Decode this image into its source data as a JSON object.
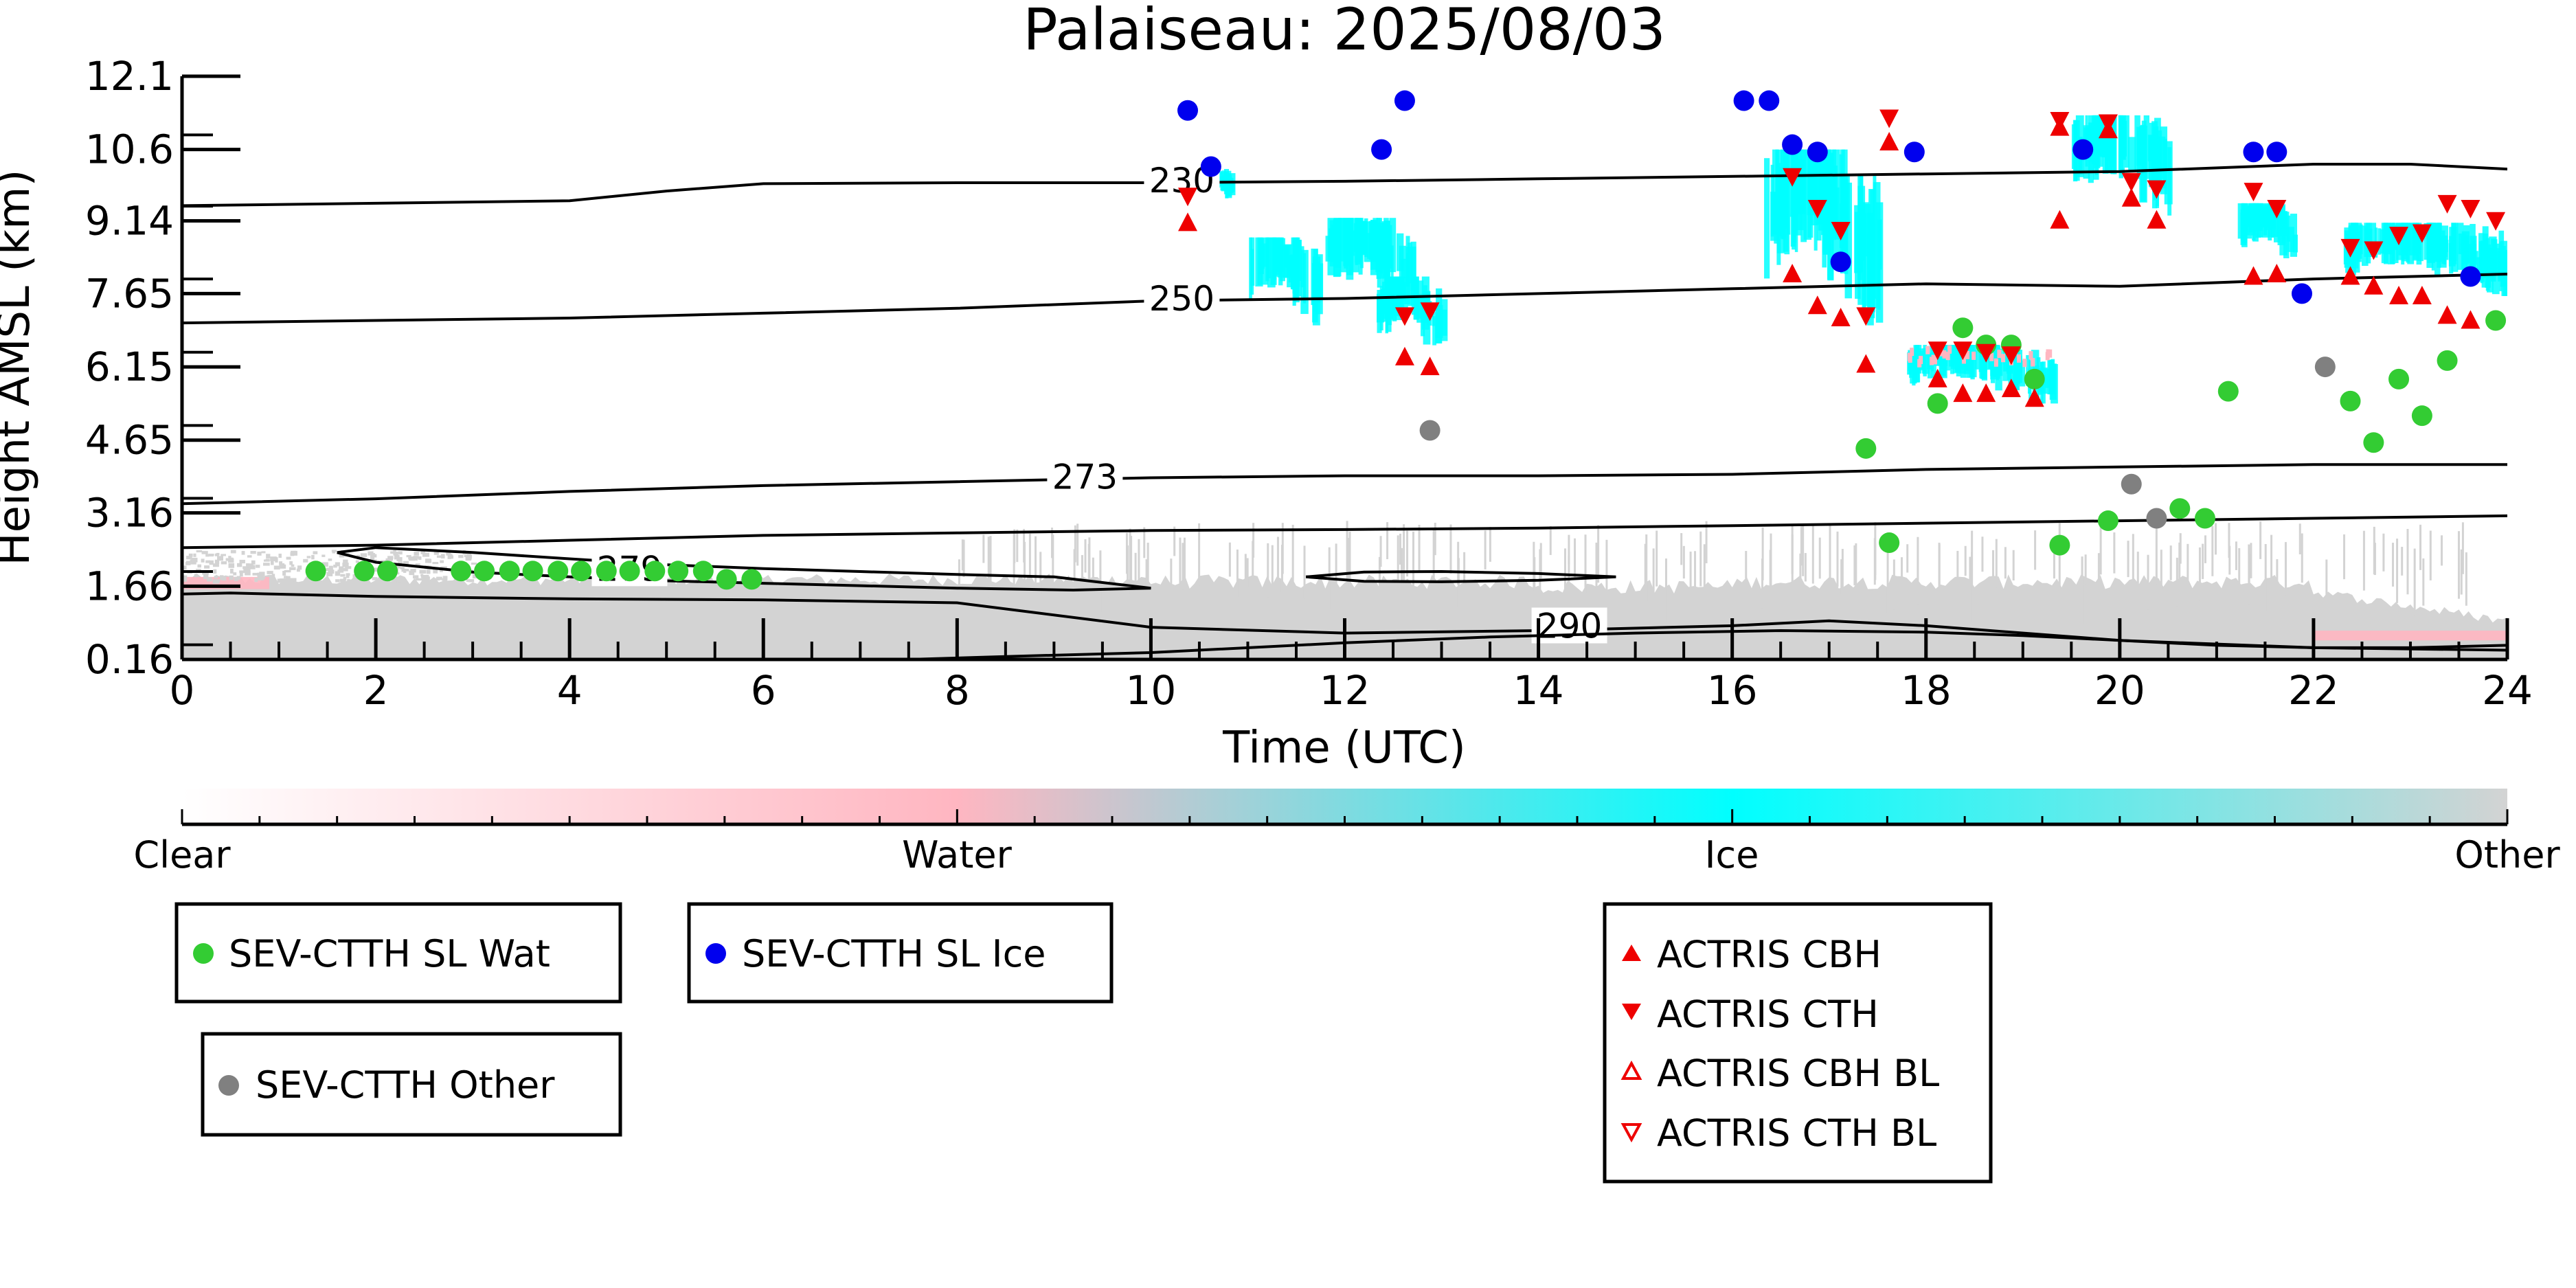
{
  "chart_data": {
    "type": "scatter",
    "title": "Palaiseau: 2025/08/03",
    "xlabel": "Time (UTC)",
    "ylabel": "Height AMSL (km)",
    "xlim": [
      0,
      24
    ],
    "ylim": [
      0.16,
      12.1
    ],
    "xticks": [
      "0",
      "2",
      "4",
      "6",
      "8",
      "10",
      "12",
      "14",
      "16",
      "18",
      "20",
      "22",
      "24"
    ],
    "yticks": [
      "0.16",
      "1.66",
      "3.16",
      "4.65",
      "6.15",
      "7.65",
      "9.14",
      "10.6",
      "12.1"
    ],
    "colorbar": {
      "labels": [
        "Clear",
        "Water",
        "Ice",
        "Other"
      ],
      "colors": [
        "#ffffff",
        "#ffb6c1",
        "#00ffff",
        "#d3d3d3"
      ]
    },
    "cloud_regions": [
      {
        "cls": "ice",
        "t0": 10.1,
        "t1": 10.8,
        "h0": 9.6,
        "h1": 10.3
      },
      {
        "cls": "ice",
        "t0": 11.0,
        "t1": 11.7,
        "h0": 7.0,
        "h1": 8.8
      },
      {
        "cls": "ice",
        "t0": 11.8,
        "t1": 12.7,
        "h0": 7.2,
        "h1": 9.2
      },
      {
        "cls": "ice",
        "t0": 12.3,
        "t1": 13.0,
        "h0": 6.3,
        "h1": 8.0
      },
      {
        "cls": "ice",
        "t0": 16.3,
        "t1": 17.5,
        "h0": 7.0,
        "h1": 10.6
      },
      {
        "cls": "ice",
        "t0": 17.8,
        "t1": 19.3,
        "h0": 5.4,
        "h1": 6.6
      },
      {
        "cls": "ice",
        "t0": 19.5,
        "t1": 20.5,
        "h0": 9.2,
        "h1": 11.3
      },
      {
        "cls": "ice",
        "t0": 21.2,
        "t1": 21.8,
        "h0": 8.2,
        "h1": 9.5
      },
      {
        "cls": "ice",
        "t0": 22.3,
        "t1": 24.0,
        "h0": 7.6,
        "h1": 9.1
      }
    ],
    "boundary_layer": [
      {
        "cls": "other",
        "t0": 0.0,
        "t1": 24.0,
        "h0": 0.16,
        "h1": 1.8
      },
      {
        "cls": "water",
        "t0": 0.0,
        "t1": 0.9,
        "h0": 1.6,
        "h1": 1.85
      },
      {
        "cls": "water",
        "t0": 22.0,
        "t1": 24.0,
        "h0": 0.55,
        "h1": 0.75
      },
      {
        "cls": "other",
        "t0": 0.0,
        "t1": 3.0,
        "h0": 1.8,
        "h1": 2.9
      }
    ],
    "contours": [
      {
        "label": "230",
        "label_x": 10.0,
        "label_y": 9.92,
        "x": [
          0,
          2,
          4,
          5,
          6,
          8,
          10,
          12,
          14,
          16,
          18,
          20,
          22,
          23,
          24
        ],
        "y": [
          9.45,
          9.5,
          9.55,
          9.75,
          9.9,
          9.92,
          9.92,
          9.95,
          10.0,
          10.05,
          10.1,
          10.15,
          10.3,
          10.3,
          10.2
        ]
      },
      {
        "label": "250",
        "label_x": 10.0,
        "label_y": 7.5,
        "x": [
          0,
          2,
          4,
          6,
          8,
          10,
          12,
          14,
          16,
          18,
          20,
          22,
          24
        ],
        "y": [
          7.05,
          7.1,
          7.15,
          7.25,
          7.35,
          7.5,
          7.55,
          7.65,
          7.75,
          7.85,
          7.8,
          7.95,
          8.05
        ]
      },
      {
        "label": "273",
        "label_x": 9.0,
        "label_y": 3.85,
        "x": [
          0,
          2,
          4,
          6,
          8,
          10,
          12,
          14,
          16,
          18,
          20,
          22,
          24
        ],
        "y": [
          3.35,
          3.45,
          3.6,
          3.72,
          3.8,
          3.88,
          3.92,
          3.92,
          3.95,
          4.05,
          4.1,
          4.15,
          4.15
        ]
      },
      {
        "label": "",
        "label_x": 0,
        "label_y": 0,
        "x": [
          0,
          2,
          4,
          6,
          8,
          10,
          12,
          14,
          16,
          18,
          20,
          22,
          24
        ],
        "y": [
          2.45,
          2.5,
          2.6,
          2.7,
          2.75,
          2.8,
          2.82,
          2.85,
          2.9,
          2.95,
          3.0,
          3.05,
          3.1
        ]
      },
      {
        "label": "279",
        "label_x": 4.3,
        "label_y": 1.97,
        "x": [
          1.6,
          2.0,
          3.0,
          4.0,
          5.0,
          6.0,
          7.0,
          8.0,
          9.0,
          10.0,
          9.2,
          8.0,
          7.0,
          6.0,
          5.0,
          4.0,
          3.0,
          2.0,
          1.6
        ],
        "y": [
          2.35,
          2.45,
          2.35,
          2.22,
          2.1,
          2.02,
          1.96,
          1.9,
          1.85,
          1.62,
          1.58,
          1.62,
          1.67,
          1.72,
          1.77,
          1.85,
          1.95,
          2.15,
          2.35
        ]
      },
      {
        "label": "",
        "label_x": 0,
        "label_y": 0,
        "x": [
          11.6,
          12.2,
          13.0,
          14.0,
          14.8,
          14.0,
          13.0,
          12.2,
          11.6
        ],
        "y": [
          1.85,
          1.95,
          1.96,
          1.92,
          1.85,
          1.78,
          1.75,
          1.76,
          1.85
        ]
      },
      {
        "label": "290",
        "label_x": 14.0,
        "label_y": 0.8,
        "x": [
          0,
          0.5,
          2,
          4,
          6,
          8,
          10,
          12,
          14,
          16,
          17,
          18,
          20,
          22,
          24
        ],
        "y": [
          1.5,
          1.52,
          1.45,
          1.4,
          1.38,
          1.32,
          0.82,
          0.7,
          0.75,
          0.85,
          0.95,
          0.85,
          0.55,
          0.4,
          0.35
        ]
      },
      {
        "label": "",
        "label_x": 0,
        "label_y": 0,
        "x": [
          7.5,
          8.5,
          10,
          12,
          13.5,
          15,
          16.5,
          18,
          19,
          20,
          21,
          22,
          23,
          24
        ],
        "y": [
          0.16,
          0.22,
          0.3,
          0.5,
          0.62,
          0.7,
          0.75,
          0.72,
          0.65,
          0.55,
          0.45,
          0.4,
          0.4,
          0.45
        ]
      }
    ],
    "series": [
      {
        "name": "SEV-CTTH SL Wat",
        "color": "#33cc33",
        "marker": "circle",
        "points": [
          [
            1.38,
            1.97
          ],
          [
            1.88,
            1.97
          ],
          [
            2.12,
            1.97
          ],
          [
            2.88,
            1.97
          ],
          [
            3.12,
            1.97
          ],
          [
            3.38,
            1.97
          ],
          [
            3.62,
            1.97
          ],
          [
            3.88,
            1.97
          ],
          [
            4.12,
            1.97
          ],
          [
            4.38,
            1.97
          ],
          [
            4.62,
            1.97
          ],
          [
            4.88,
            1.97
          ],
          [
            5.12,
            1.97
          ],
          [
            5.38,
            1.97
          ],
          [
            5.62,
            1.8
          ],
          [
            5.88,
            1.8
          ],
          [
            17.38,
            4.48
          ],
          [
            17.62,
            2.55
          ],
          [
            18.12,
            5.4
          ],
          [
            18.38,
            6.95
          ],
          [
            18.62,
            6.6
          ],
          [
            18.88,
            6.6
          ],
          [
            19.12,
            5.9
          ],
          [
            19.38,
            2.5
          ],
          [
            19.88,
            3.0
          ],
          [
            20.62,
            3.25
          ],
          [
            20.88,
            3.05
          ],
          [
            21.12,
            5.65
          ],
          [
            22.62,
            4.6
          ],
          [
            22.38,
            5.45
          ],
          [
            22.88,
            5.9
          ],
          [
            23.12,
            5.15
          ],
          [
            23.38,
            6.28
          ],
          [
            23.88,
            7.1
          ]
        ]
      },
      {
        "name": "SEV-CTTH SL Ice",
        "color": "#0000ee",
        "marker": "circle",
        "points": [
          [
            10.38,
            11.4
          ],
          [
            10.62,
            10.25
          ],
          [
            12.38,
            10.6
          ],
          [
            12.62,
            11.6
          ],
          [
            16.12,
            11.6
          ],
          [
            16.38,
            11.6
          ],
          [
            16.62,
            10.7
          ],
          [
            16.88,
            10.55
          ],
          [
            17.12,
            8.3
          ],
          [
            17.88,
            10.55
          ],
          [
            19.62,
            10.6
          ],
          [
            21.38,
            10.55
          ],
          [
            21.62,
            10.55
          ],
          [
            21.88,
            7.65
          ],
          [
            23.62,
            8.0
          ]
        ]
      },
      {
        "name": "SEV-CTTH Other",
        "color": "#808080",
        "marker": "circle",
        "points": [
          [
            12.88,
            4.85
          ],
          [
            20.12,
            3.75
          ],
          [
            20.38,
            3.05
          ],
          [
            22.12,
            6.15
          ]
        ]
      },
      {
        "name": "ACTRIS CBH",
        "color": "#ee0000",
        "marker": "triangle-up",
        "points": [
          [
            10.38,
            9.1
          ],
          [
            12.62,
            6.35
          ],
          [
            12.88,
            6.15
          ],
          [
            16.62,
            8.05
          ],
          [
            16.88,
            7.4
          ],
          [
            17.12,
            7.15
          ],
          [
            17.38,
            6.2
          ],
          [
            17.62,
            10.75
          ],
          [
            18.12,
            5.9
          ],
          [
            18.38,
            5.6
          ],
          [
            18.62,
            5.6
          ],
          [
            18.88,
            5.7
          ],
          [
            19.12,
            5.5
          ],
          [
            19.38,
            9.15
          ],
          [
            19.38,
            11.05
          ],
          [
            19.88,
            11.0
          ],
          [
            20.12,
            9.6
          ],
          [
            20.38,
            9.15
          ],
          [
            21.38,
            8.0
          ],
          [
            21.62,
            8.05
          ],
          [
            22.38,
            8.0
          ],
          [
            22.62,
            7.8
          ],
          [
            22.88,
            7.6
          ],
          [
            23.12,
            7.6
          ],
          [
            23.38,
            7.2
          ],
          [
            23.62,
            7.1
          ]
        ]
      },
      {
        "name": "ACTRIS CTH",
        "color": "#ee0000",
        "marker": "triangle-down",
        "points": [
          [
            10.38,
            9.65
          ],
          [
            12.62,
            7.2
          ],
          [
            12.88,
            7.3
          ],
          [
            16.62,
            10.05
          ],
          [
            16.88,
            9.4
          ],
          [
            17.12,
            8.95
          ],
          [
            17.38,
            7.2
          ],
          [
            17.62,
            11.25
          ],
          [
            18.12,
            6.5
          ],
          [
            18.38,
            6.5
          ],
          [
            18.62,
            6.45
          ],
          [
            18.88,
            6.4
          ],
          [
            19.38,
            11.2
          ],
          [
            19.88,
            11.15
          ],
          [
            20.12,
            9.95
          ],
          [
            20.38,
            9.8
          ],
          [
            21.38,
            9.75
          ],
          [
            21.62,
            9.4
          ],
          [
            22.38,
            8.6
          ],
          [
            22.62,
            8.55
          ],
          [
            22.88,
            8.85
          ],
          [
            23.12,
            8.9
          ],
          [
            23.38,
            9.5
          ],
          [
            23.62,
            9.4
          ],
          [
            23.88,
            9.15
          ]
        ]
      },
      {
        "name": "ACTRIS CBH BL",
        "color": "#ee0000",
        "marker": "triangle-up-open",
        "points": []
      },
      {
        "name": "ACTRIS CTH BL",
        "color": "#ee0000",
        "marker": "triangle-down-open",
        "points": []
      }
    ]
  },
  "legend": {
    "wat": "SEV-CTTH SL Wat",
    "ice": "SEV-CTTH SL Ice",
    "other": "SEV-CTTH Other",
    "cbh": "ACTRIS CBH",
    "cth": "ACTRIS CTH",
    "cbh_bl": "ACTRIS CBH BL",
    "cth_bl": "ACTRIS CTH BL"
  }
}
